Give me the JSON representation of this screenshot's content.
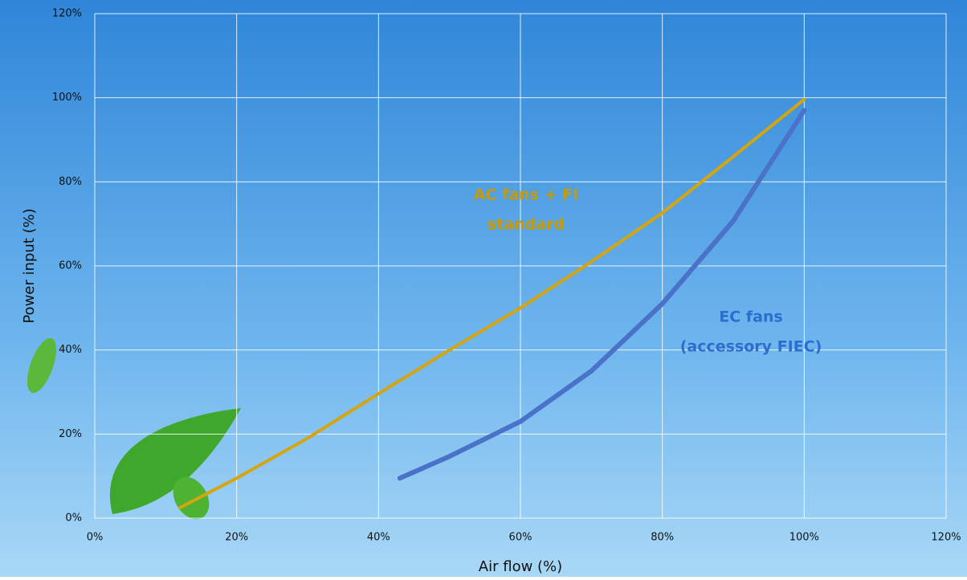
{
  "chart_data": {
    "type": "line",
    "x_label": "Air flow (%)",
    "y_label": "Power input (%)",
    "xlim": [
      0,
      120
    ],
    "ylim": [
      0,
      120
    ],
    "xticks": [
      {
        "value": 0,
        "label": "0%"
      },
      {
        "value": 20,
        "label": "20%"
      },
      {
        "value": 40,
        "label": "40%"
      },
      {
        "value": 60,
        "label": "60%"
      },
      {
        "value": 80,
        "label": "80%"
      },
      {
        "value": 100,
        "label": "100%"
      },
      {
        "value": 120,
        "label": "120%"
      }
    ],
    "yticks": [
      {
        "value": 0,
        "label": "0%"
      },
      {
        "value": 20,
        "label": "20%"
      },
      {
        "value": 40,
        "label": "40%"
      },
      {
        "value": 60,
        "label": "60%"
      },
      {
        "value": 80,
        "label": "80%"
      },
      {
        "value": 100,
        "label": "100%"
      },
      {
        "value": 120,
        "label": "120%"
      }
    ],
    "grid": true,
    "series": [
      {
        "color": "#d6a40c",
        "x": [
          12,
          20,
          30,
          40,
          50,
          60,
          70,
          80,
          90,
          100
        ],
        "values": [
          2.5,
          9.5,
          19,
          29.6,
          40,
          50,
          61,
          72.6,
          86,
          99.6
        ]
      },
      {
        "color": "#4a72c8",
        "x": [
          43,
          50,
          60,
          70,
          80,
          90,
          100
        ],
        "values": [
          9.5,
          14.7,
          23,
          35,
          51,
          70.7,
          97
        ]
      }
    ],
    "annotations": [
      {
        "lines": [
          "AC fans + FI",
          "standard"
        ],
        "color": "#c99a00"
      },
      {
        "lines": [
          "EC fans",
          "(accessory FIEC)"
        ],
        "color": "#2a6fcf"
      }
    ]
  }
}
